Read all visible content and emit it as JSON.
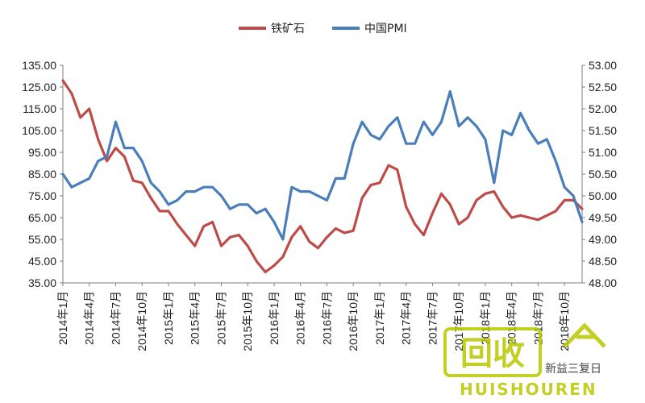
{
  "chart_data": {
    "type": "line",
    "title": "",
    "legend_position": "top",
    "grid": false,
    "left_axis": {
      "range": [
        35,
        135
      ],
      "ticks": [
        "35.00",
        "45.00",
        "55.00",
        "65.00",
        "75.00",
        "85.00",
        "95.00",
        "105.00",
        "115.00",
        "125.00",
        "135.00"
      ]
    },
    "right_axis": {
      "range": [
        48.0,
        53.0
      ],
      "ticks": [
        "48.00",
        "48.50",
        "49.00",
        "49.50",
        "50.00",
        "50.50",
        "51.00",
        "51.50",
        "52.00",
        "52.50",
        "53.00"
      ]
    },
    "x_tick_labels": [
      "2014年1月",
      "2014年4月",
      "2014年7月",
      "2014年10月",
      "2015年1月",
      "2015年4月",
      "2015年7月",
      "2015年10月",
      "2016年1月",
      "2016年4月",
      "2016年7月",
      "2016年10月",
      "2017年1月",
      "2017年4月",
      "2017年7月",
      "2017年10月",
      "2018年1月",
      "2018年4月",
      "2018年7月",
      "2018年10月"
    ],
    "series": [
      {
        "name": "铁矿石",
        "axis": "left",
        "color": "#be4b48",
        "values": [
          128,
          122,
          111,
          115,
          101,
          91,
          97,
          93,
          82,
          81,
          74,
          68,
          68,
          62,
          57,
          52,
          61,
          63,
          52,
          56,
          57,
          52,
          45,
          40,
          43,
          47,
          56,
          61,
          54,
          51,
          56,
          60,
          58,
          59,
          74,
          80,
          81,
          89,
          87,
          70,
          62,
          57,
          67,
          76,
          71,
          62,
          65,
          73,
          76,
          77,
          70,
          65,
          66,
          65,
          64,
          66,
          68,
          73,
          73,
          69
        ]
      },
      {
        "name": "中国PMI",
        "axis": "right",
        "color": "#4a7ebb",
        "values": [
          50.5,
          50.2,
          50.3,
          50.4,
          50.8,
          50.9,
          51.7,
          51.1,
          51.1,
          50.8,
          50.3,
          50.1,
          49.8,
          49.9,
          50.1,
          50.1,
          50.2,
          50.2,
          50.0,
          49.7,
          49.8,
          49.8,
          49.6,
          49.7,
          49.4,
          49.0,
          50.2,
          50.1,
          50.1,
          50.0,
          49.9,
          50.4,
          50.4,
          51.2,
          51.7,
          51.4,
          51.3,
          51.6,
          51.8,
          51.2,
          51.2,
          51.7,
          51.4,
          51.7,
          52.4,
          51.6,
          51.8,
          51.6,
          51.3,
          50.3,
          51.5,
          51.4,
          51.9,
          51.5,
          51.2,
          51.3,
          50.8,
          50.2,
          50.0,
          49.4
        ]
      }
    ]
  },
  "watermark": {
    "logo_text": "回收",
    "brand_text": "HUISHOUREN",
    "side_text": "新益三复日",
    "color": "#b8c800"
  }
}
